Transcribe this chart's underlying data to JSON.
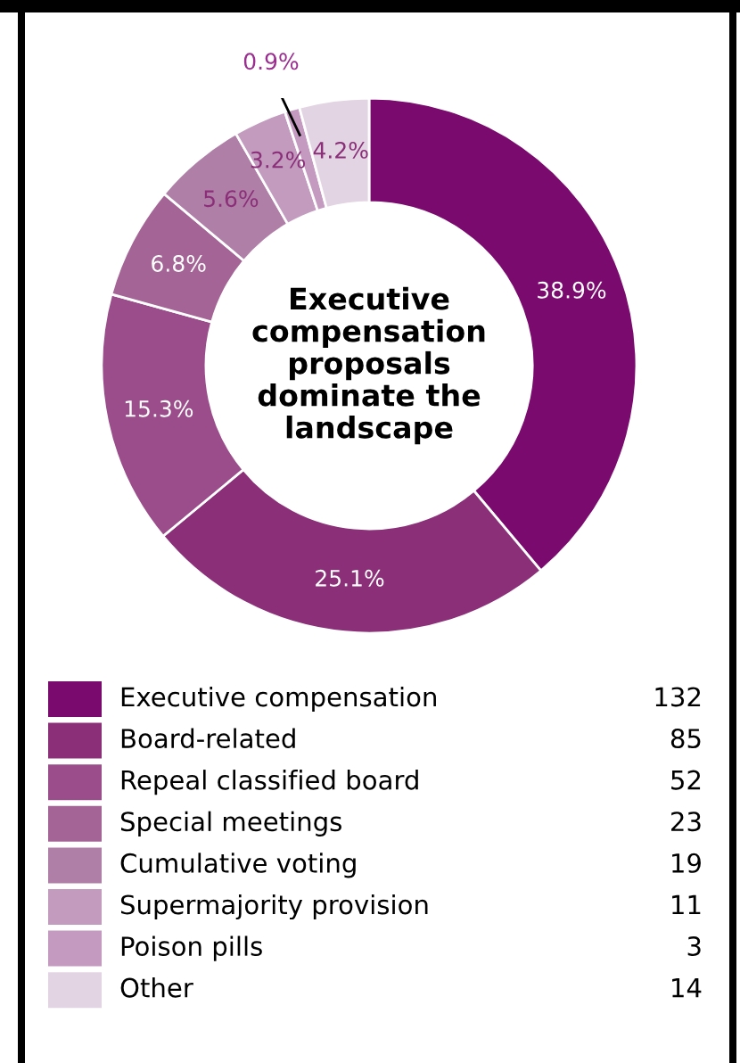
{
  "chart_data": {
    "type": "donut",
    "title": "Executive compensation proposals dominate the landscape",
    "categories": [
      "Executive compensation",
      "Board-related",
      "Repeal classified board",
      "Special meetings",
      "Cumulative voting",
      "Supermajority provision",
      "Poison pills",
      "Other"
    ],
    "values": [
      38.9,
      25.1,
      15.3,
      6.8,
      5.6,
      3.2,
      0.9,
      4.2
    ],
    "value_labels": [
      "38.9%",
      "25.1%",
      "15.3%",
      "6.8%",
      "5.6%",
      "3.2%",
      "0.9%",
      "4.2%"
    ],
    "annotations": [
      "132",
      "85",
      "52",
      "23",
      "19",
      "11",
      "3",
      "14"
    ],
    "colors": [
      "#7b0a6e",
      "#8a2f78",
      "#9a4d8a",
      "#a46596",
      "#b07fa8",
      "#c29bbf",
      "#c49ac0",
      "#e3d4e4"
    ],
    "legend": "bottom"
  }
}
